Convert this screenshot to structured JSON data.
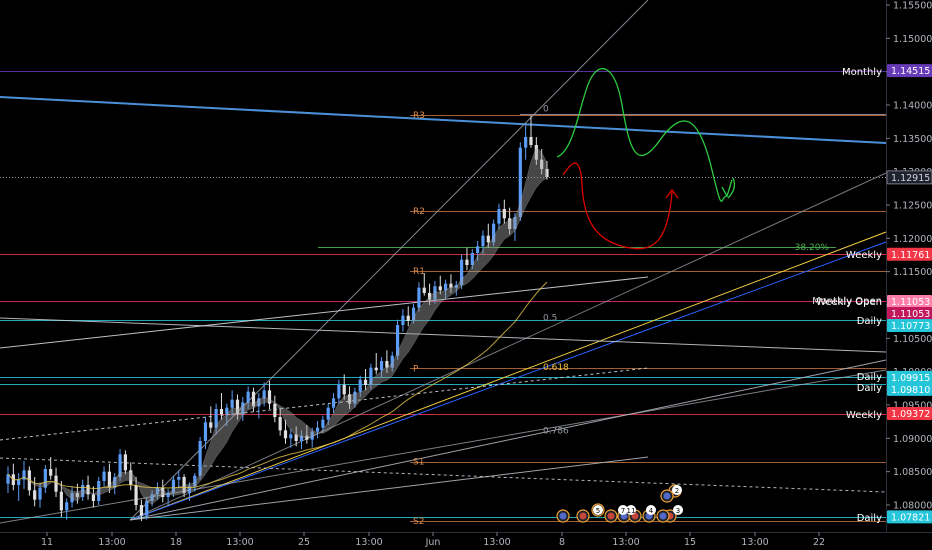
{
  "chart_data": {
    "type": "candlestick",
    "symbol_pair": "EURUSD",
    "y_axis": {
      "position": "right",
      "ticks": [
        1.155,
        1.15,
        1.145,
        1.14,
        1.135,
        1.13,
        1.125,
        1.12,
        1.115,
        1.11,
        1.105,
        1.1,
        1.095,
        1.09,
        1.085,
        1.08
      ],
      "tick_labels": [
        "1.15500",
        "1.15000",
        "1.14500",
        "1.14000",
        "1.13500",
        "1.13000",
        "1.12500",
        "1.12000",
        "1.11500",
        "1.11000",
        "1.10500",
        "1.10000",
        "1.09500",
        "1.09000",
        "1.08500",
        "1.08000"
      ],
      "ylim": [
        1.0762,
        1.1566
      ]
    },
    "x_axis": {
      "tick_labels": [
        "11",
        "13:00",
        "18",
        "13:00",
        "25",
        "13:00",
        "Jun",
        "13:00",
        "8",
        "13:00",
        "15",
        "13:00",
        "22"
      ]
    },
    "current_price": {
      "value": 1.12915,
      "label": "1.12915",
      "color": "#b2b5be"
    },
    "levels": [
      {
        "name": "Monthly",
        "value": 1.14515,
        "label": "1.14515",
        "color": "#673ab7"
      },
      {
        "name": "Weekly",
        "value": 1.11761,
        "label": "1.11761",
        "color": "#f23645"
      },
      {
        "name": "Monthly Open",
        "value": 1.11053,
        "label": "1.11053",
        "color": "#ff80ab"
      },
      {
        "name": "Weekly Open",
        "value": 1.11053,
        "label": "1.11053",
        "color": "#c2185b"
      },
      {
        "name": "Daily",
        "value": 1.10773,
        "label": "1.10773",
        "color": "#26c6da"
      },
      {
        "name": "Daily",
        "value": 1.09915,
        "label": "1.09915",
        "color": "#26c6da"
      },
      {
        "name": "Daily",
        "value": 1.0981,
        "label": "1.09810",
        "color": "#26c6da"
      },
      {
        "name": "Weekly",
        "value": 1.09372,
        "label": "1.09372",
        "color": "#f23645"
      },
      {
        "name": "Daily",
        "value": 1.07821,
        "label": "1.07821",
        "color": "#26c6da"
      }
    ],
    "pivots": [
      {
        "name": "R3",
        "value": 1.1385
      },
      {
        "name": "R2",
        "value": 1.1241
      },
      {
        "name": "R1",
        "value": 1.1151
      },
      {
        "name": "P",
        "value": 1.1005
      },
      {
        "name": "S1",
        "value": 1.0865
      },
      {
        "name": "S2",
        "value": 1.0776
      }
    ],
    "fib_labels": [
      {
        "label": "0",
        "value": 1.1387
      },
      {
        "label": "38.20%",
        "value": 1.1187
      },
      {
        "label": "0.5",
        "value": 1.1081
      },
      {
        "label": "0.618",
        "value": 1.1007
      },
      {
        "label": "0.786",
        "value": 1.0912
      }
    ],
    "candles": [
      [
        1.0832,
        1.0858,
        1.0818,
        1.0846
      ],
      [
        1.0846,
        1.0862,
        1.0822,
        1.083
      ],
      [
        1.083,
        1.0848,
        1.0806,
        1.0838
      ],
      [
        1.0838,
        1.0866,
        1.0824,
        1.0852
      ],
      [
        1.0852,
        1.0858,
        1.0814,
        1.0822
      ],
      [
        1.0822,
        1.0842,
        1.0798,
        1.0808
      ],
      [
        1.0808,
        1.0834,
        1.0796,
        1.0826
      ],
      [
        1.0826,
        1.086,
        1.0818,
        1.0854
      ],
      [
        1.0854,
        1.0872,
        1.0838,
        1.0844
      ],
      [
        1.0844,
        1.0856,
        1.0812,
        1.082
      ],
      [
        1.082,
        1.0836,
        1.0782,
        1.0792
      ],
      [
        1.0792,
        1.081,
        1.0778,
        1.0804
      ],
      [
        1.0804,
        1.0828,
        1.0796,
        1.0818
      ],
      [
        1.0818,
        1.0832,
        1.0802,
        1.0812
      ],
      [
        1.0812,
        1.0838,
        1.0806,
        1.083
      ],
      [
        1.083,
        1.0844,
        1.0808,
        1.0816
      ],
      [
        1.0816,
        1.0828,
        1.0796,
        1.0806
      ],
      [
        1.0806,
        1.0842,
        1.08,
        1.0836
      ],
      [
        1.0836,
        1.0858,
        1.0828,
        1.085
      ],
      [
        1.085,
        1.0862,
        1.0818,
        1.0826
      ],
      [
        1.0826,
        1.0848,
        1.0816,
        1.0842
      ],
      [
        1.0842,
        1.0884,
        1.0836,
        1.0876
      ],
      [
        1.0876,
        1.0882,
        1.0846,
        1.0852
      ],
      [
        1.0852,
        1.0864,
        1.0822,
        1.083
      ],
      [
        1.083,
        1.0842,
        1.0792,
        1.08
      ],
      [
        1.08,
        1.0808,
        1.0776,
        1.0784
      ],
      [
        1.0784,
        1.0812,
        1.0778,
        1.0806
      ],
      [
        1.0806,
        1.0822,
        1.0798,
        1.0816
      ],
      [
        1.0816,
        1.0834,
        1.0808,
        1.0826
      ],
      [
        1.0826,
        1.0838,
        1.0804,
        1.0812
      ],
      [
        1.0812,
        1.0824,
        1.0798,
        1.0818
      ],
      [
        1.0818,
        1.0844,
        1.0812,
        1.0838
      ],
      [
        1.0838,
        1.0852,
        1.0826,
        1.0842
      ],
      [
        1.0842,
        1.0846,
        1.0812,
        1.0818
      ],
      [
        1.0818,
        1.0834,
        1.0806,
        1.0828
      ],
      [
        1.0828,
        1.0848,
        1.082,
        1.0844
      ],
      [
        1.0844,
        1.0902,
        1.0838,
        1.0896
      ],
      [
        1.0896,
        1.0932,
        1.0884,
        1.0924
      ],
      [
        1.0924,
        1.0948,
        1.0908,
        1.0916
      ],
      [
        1.0916,
        1.0952,
        1.0906,
        1.0944
      ],
      [
        1.0944,
        1.0968,
        1.0928,
        1.0936
      ],
      [
        1.0936,
        1.0952,
        1.0918,
        1.0946
      ],
      [
        1.0946,
        1.0972,
        1.0934,
        1.0958
      ],
      [
        1.0958,
        1.0966,
        1.0928,
        1.0936
      ],
      [
        1.0936,
        1.0962,
        1.0926,
        1.0954
      ],
      [
        1.0954,
        1.0978,
        1.0944,
        1.097
      ],
      [
        1.097,
        1.0976,
        1.094,
        1.0948
      ],
      [
        1.0948,
        1.0968,
        1.093,
        1.096
      ],
      [
        1.096,
        1.0984,
        1.0948,
        1.0972
      ],
      [
        1.0972,
        1.0986,
        1.0944,
        1.0952
      ],
      [
        1.0952,
        1.0964,
        1.0924,
        1.0932
      ],
      [
        1.0932,
        1.0946,
        1.0904,
        1.0912
      ],
      [
        1.0912,
        1.0928,
        1.0892,
        1.09
      ],
      [
        1.09,
        1.0914,
        1.0886,
        1.0906
      ],
      [
        1.0906,
        1.0918,
        1.0888,
        1.0896
      ],
      [
        1.0896,
        1.0912,
        1.0884,
        1.0904
      ],
      [
        1.0904,
        1.092,
        1.0892,
        1.0898
      ],
      [
        1.0898,
        1.0916,
        1.0886,
        1.091
      ],
      [
        1.091,
        1.0926,
        1.09,
        1.0916
      ],
      [
        1.0916,
        1.0934,
        1.0908,
        1.0928
      ],
      [
        1.0928,
        1.0952,
        1.092,
        1.0946
      ],
      [
        1.0946,
        1.0968,
        1.0938,
        1.096
      ],
      [
        1.096,
        1.0988,
        1.0952,
        1.098
      ],
      [
        1.098,
        1.0996,
        1.0958,
        1.0966
      ],
      [
        1.0966,
        1.0978,
        1.0944,
        1.0952
      ],
      [
        1.0952,
        1.0976,
        1.0946,
        1.097
      ],
      [
        1.097,
        1.0994,
        1.0962,
        1.0988
      ],
      [
        1.0988,
        1.1004,
        1.0972,
        1.098
      ],
      [
        1.098,
        1.1012,
        1.0974,
        1.1006
      ],
      [
        1.1006,
        1.1028,
        1.0996,
        1.1002
      ],
      [
        1.1002,
        1.1022,
        1.0992,
        1.1016
      ],
      [
        1.1016,
        1.1032,
        1.0998,
        1.1006
      ],
      [
        1.1006,
        1.103,
        1.1,
        1.1024
      ],
      [
        1.1024,
        1.1078,
        1.1018,
        1.107
      ],
      [
        1.107,
        1.1094,
        1.106,
        1.1084
      ],
      [
        1.1084,
        1.1098,
        1.1068,
        1.1076
      ],
      [
        1.1076,
        1.1102,
        1.1072,
        1.1096
      ],
      [
        1.1096,
        1.1134,
        1.109,
        1.1126
      ],
      [
        1.1126,
        1.1148,
        1.1114,
        1.1118
      ],
      [
        1.1118,
        1.1132,
        1.11,
        1.1108
      ],
      [
        1.1108,
        1.1136,
        1.1102,
        1.1128
      ],
      [
        1.1128,
        1.1144,
        1.1116,
        1.1122
      ],
      [
        1.1122,
        1.1138,
        1.111,
        1.1132
      ],
      [
        1.1132,
        1.1146,
        1.1118,
        1.1126
      ],
      [
        1.1126,
        1.1136,
        1.1114,
        1.113
      ],
      [
        1.113,
        1.1176,
        1.1124,
        1.1168
      ],
      [
        1.1168,
        1.1186,
        1.1152,
        1.116
      ],
      [
        1.116,
        1.1184,
        1.1154,
        1.1178
      ],
      [
        1.1178,
        1.1196,
        1.1166,
        1.1188
      ],
      [
        1.1188,
        1.1212,
        1.1176,
        1.1204
      ],
      [
        1.1204,
        1.1222,
        1.1186,
        1.1194
      ],
      [
        1.1194,
        1.1228,
        1.1188,
        1.1222
      ],
      [
        1.1222,
        1.1252,
        1.1214,
        1.1244
      ],
      [
        1.1244,
        1.1258,
        1.1222,
        1.123
      ],
      [
        1.123,
        1.1246,
        1.1206,
        1.1214
      ],
      [
        1.1214,
        1.1238,
        1.1196,
        1.1232
      ],
      [
        1.1232,
        1.1344,
        1.1226,
        1.1336
      ],
      [
        1.1336,
        1.1372,
        1.1318,
        1.1352
      ],
      [
        1.1352,
        1.1384,
        1.1336,
        1.134
      ],
      [
        1.134,
        1.1352,
        1.131,
        1.1318
      ],
      [
        1.1318,
        1.1334,
        1.1296,
        1.1304
      ],
      [
        1.1304,
        1.1316,
        1.1288,
        1.1292
      ]
    ],
    "events": [
      {
        "label": "5"
      },
      {
        "label": "7"
      },
      {
        "label": "11"
      },
      {
        "label": "4"
      },
      {
        "label": "2"
      },
      {
        "label": "3"
      }
    ],
    "colors": {
      "up": "#5b9cf6",
      "down": "#e0e0e0",
      "background": "#000000",
      "trendline_blue": "#2962ff",
      "forecast_green": "#2ecc40",
      "forecast_red": "#e00000"
    }
  }
}
